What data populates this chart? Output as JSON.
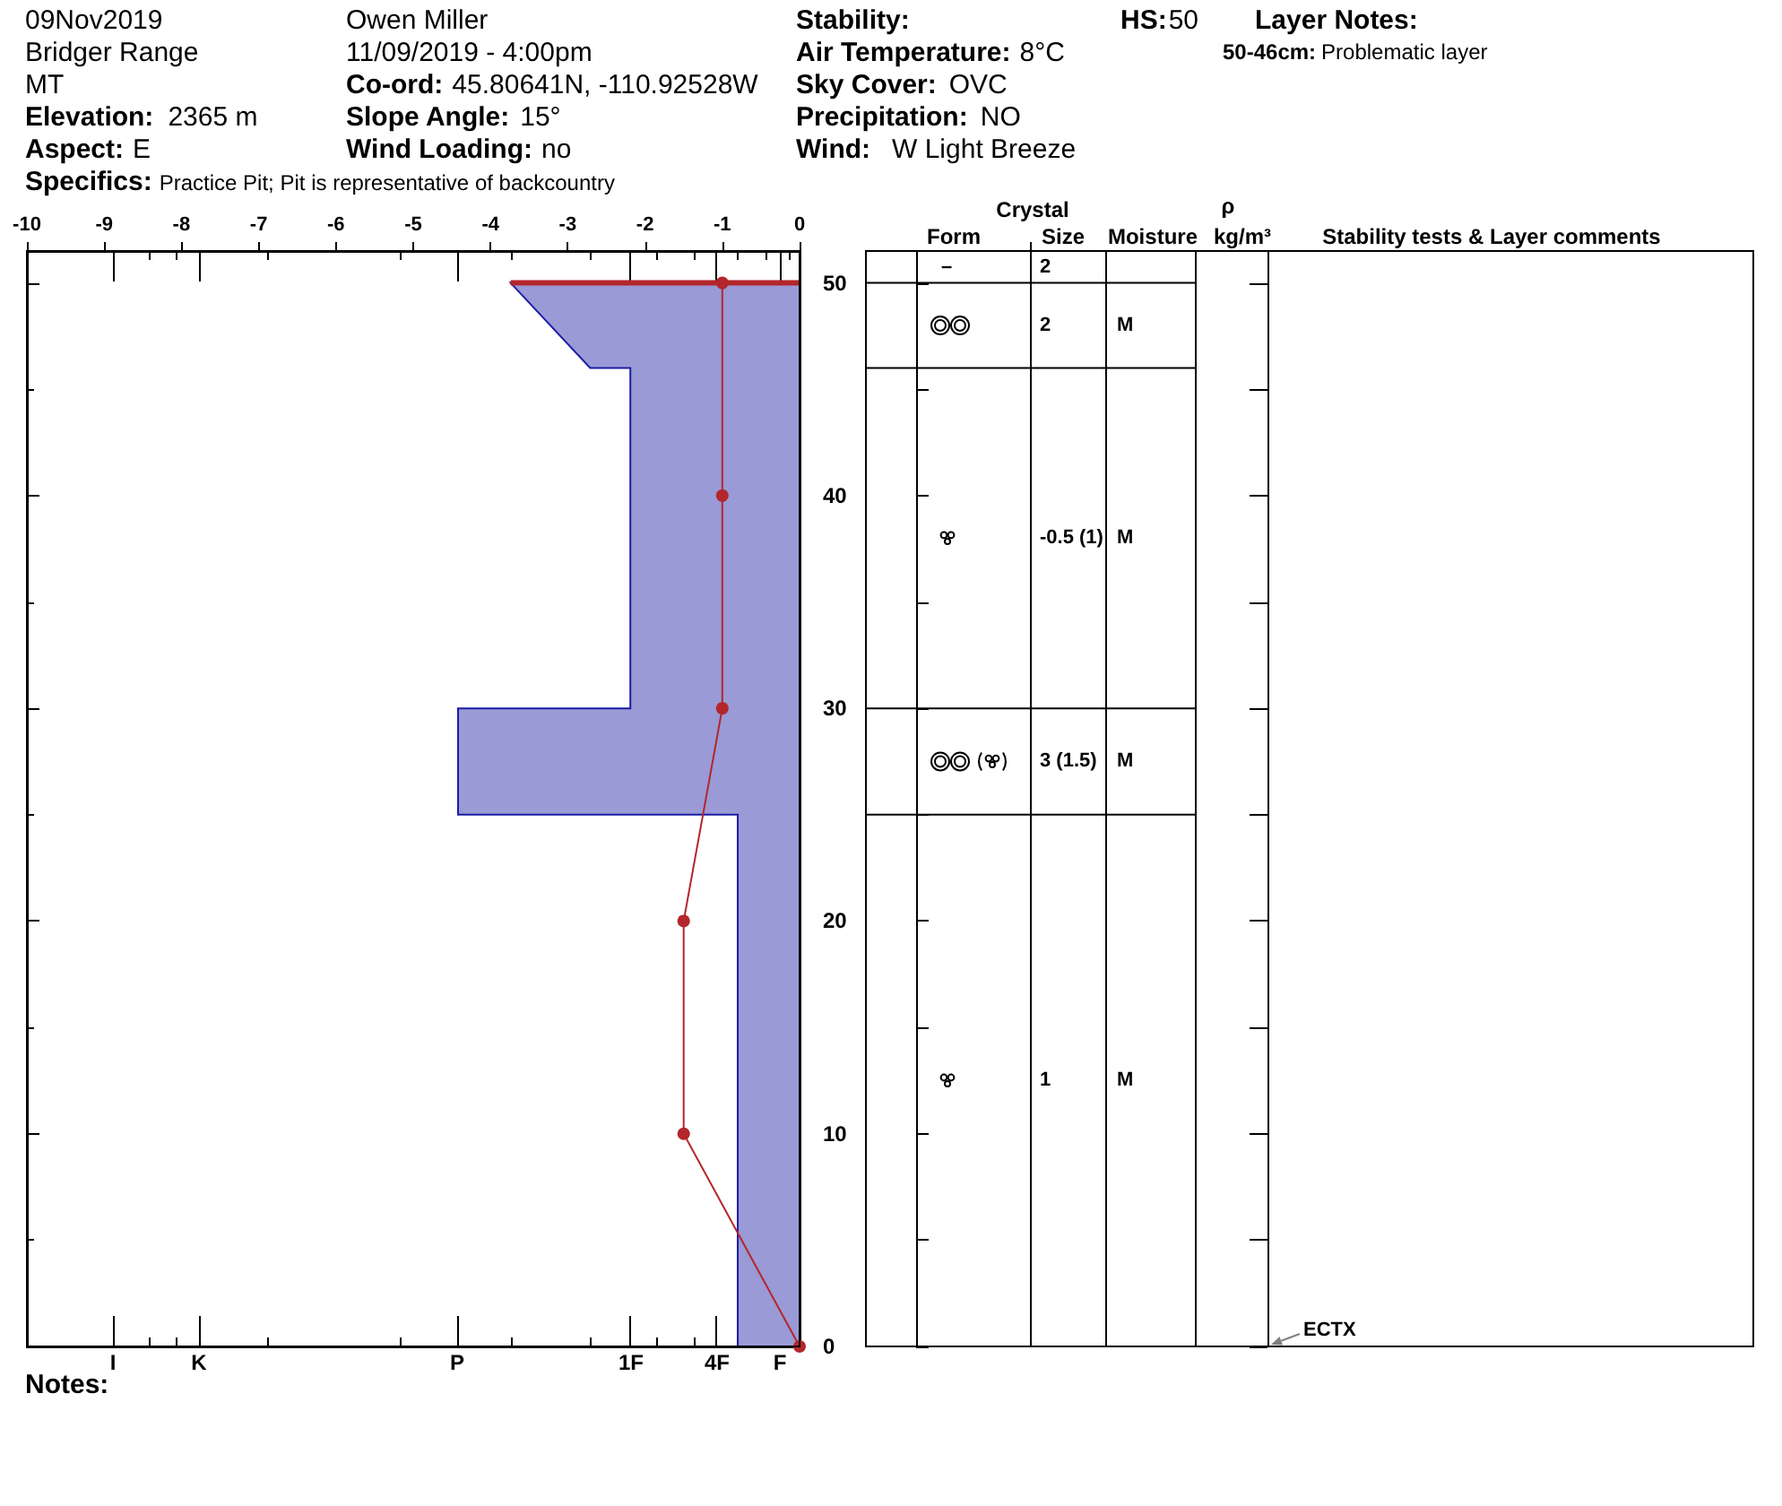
{
  "chart_data": [
    {
      "type": "line",
      "series": [
        {
          "type": "area",
          "color": "#9a9ad6",
          "x": [
            0,
            -3.74,
            -2.71,
            -2.19,
            -2.19,
            -4.42,
            -4.42,
            -0.8,
            -0.8,
            0
          ],
          "values": [
            50,
            50,
            46,
            46,
            30,
            30,
            25,
            25,
            0,
            0
          ]
        },
        {
          "type": "line",
          "color": "#b3262b",
          "x": [
            -3.74,
            0
          ],
          "values": [
            50,
            50
          ]
        },
        {
          "type": "line",
          "color": "#b3262b",
          "marker": "circle",
          "x": [
            -1,
            -1,
            -1,
            -1.5,
            -1.5,
            0
          ],
          "values": [
            50,
            40,
            30,
            20,
            10,
            0
          ]
        }
      ],
      "xlim": [
        -10,
        0
      ],
      "xticks": [
        -10,
        -9,
        {
          "value": -8.89,
          "label": null
        },
        {
          "value": -8.42,
          "label": null
        },
        {
          "value": -8.07,
          "label": null
        },
        -8,
        {
          "value": -7.77,
          "label": null
        },
        -7,
        {
          "value": -6.89,
          "label": null
        },
        -6,
        {
          "value": -5.17,
          "label": null
        },
        -5,
        {
          "value": -4.42,
          "label": null
        },
        -4,
        {
          "value": -3.74,
          "label": null
        },
        -3,
        {
          "value": -2.71,
          "label": null
        },
        {
          "value": -2.19,
          "label": null
        },
        -2,
        {
          "value": -1.86,
          "label": null
        },
        {
          "value": -1.37,
          "label": null
        },
        {
          "value": -1.08,
          "label": null
        },
        -1,
        {
          "value": -0.8,
          "label": null
        },
        {
          "value": -0.44,
          "label": null
        },
        {
          "value": -0.24,
          "label": null
        },
        {
          "value": -0.14,
          "label": null
        },
        0
      ],
      "ylim": [
        0,
        51.5
      ],
      "yticks": [
        0,
        {
          "value": 5,
          "label": null
        },
        10,
        {
          "value": 15,
          "label": null
        },
        20,
        {
          "value": 25,
          "label": null
        },
        30,
        {
          "value": 35,
          "label": null
        },
        40,
        {
          "value": 45,
          "label": null
        },
        50
      ],
      "annotations": [
        "09Nov2019",
        "Bridger Range",
        "MT",
        "Elevation:",
        "2365 m",
        "Aspect:",
        "E",
        "Specifics:",
        "Practice Pit; Pit is representative of backcountry",
        "Owen Miller",
        "11/09/2019 - 4:00pm",
        "Co-ord:",
        "45.80641N, -110.92528W",
        "Slope Angle:",
        "15°",
        "Wind Loading:",
        "no",
        "Stability:",
        "Air Temperature:",
        "8°C",
        "Sky Cover:",
        "OVC",
        "Precipitation:",
        "NO",
        "Wind:",
        "W Light Breeze",
        "HS:",
        "50",
        "Layer Notes:",
        "50-46cm:",
        "Problematic layer",
        "Notes:",
        "I",
        "K",
        "P",
        "1F",
        "4F",
        "F"
      ]
    },
    {
      "type": "other",
      "categories": [
        null,
        "Form",
        "Size",
        "Moisture",
        "kg/m³",
        "Stability tests & Layer comments"
      ],
      "annotations": [
        "Crystal",
        "ρ",
        "–",
        "2",
        "2",
        "M",
        "-0.5 (1)",
        "M",
        "3 (1.5)",
        "M",
        "1",
        "M",
        "ECTX"
      ]
    }
  ]
}
